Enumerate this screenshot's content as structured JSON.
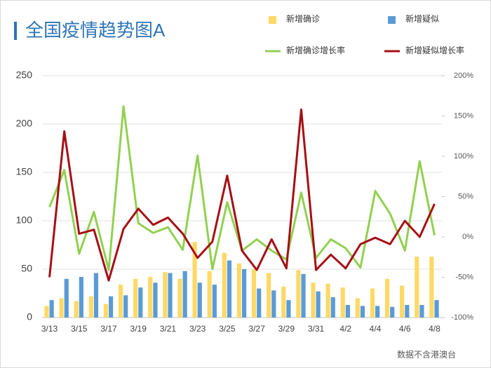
{
  "chart_data": {
    "type": "bar",
    "title": "全国疫情趋势图A",
    "note": "数据不含港澳台",
    "categories": [
      "3/13",
      null,
      "3/15",
      null,
      "3/17",
      null,
      "3/19",
      null,
      "3/21",
      null,
      "3/23",
      null,
      "3/25",
      null,
      "3/27",
      null,
      "3/29",
      null,
      "3/31",
      null,
      "4/2",
      null,
      "4/4",
      null,
      "4/6",
      null,
      "4/8"
    ],
    "series": [
      {
        "name": "新增确诊",
        "type": "bar",
        "color": "#ffd966",
        "values": [
          12,
          20,
          17,
          22,
          14,
          34,
          40,
          42,
          47,
          40,
          78,
          48,
          67,
          56,
          50,
          46,
          32,
          49,
          36,
          35,
          31,
          20,
          30,
          40,
          33,
          63,
          63
        ]
      },
      {
        "name": "新增疑似",
        "type": "bar",
        "color": "#5b9bd5",
        "values": [
          18,
          40,
          42,
          46,
          22,
          23,
          31,
          36,
          46,
          48,
          36,
          34,
          59,
          50,
          30,
          28,
          18,
          45,
          27,
          21,
          13,
          12,
          12,
          11,
          13,
          13,
          18
        ]
      },
      {
        "name": "新增确诊增长率",
        "type": "line",
        "axis": "y2",
        "color": "#92d050",
        "values": [
          37,
          83,
          -21,
          31,
          -41,
          162,
          17,
          5,
          12,
          -16,
          101,
          -40,
          43,
          -17,
          -3,
          -17,
          -28,
          55,
          -26,
          -3,
          -14,
          -38,
          57,
          29,
          -17,
          94,
          2
        ]
      },
      {
        "name": "新增疑似增长率",
        "type": "line",
        "axis": "y2",
        "color": "#a50f15",
        "values": [
          -50,
          131,
          4,
          9,
          -54,
          10,
          35,
          15,
          24,
          4,
          -26,
          -6,
          76,
          -17,
          -41,
          -3,
          -39,
          158,
          -41,
          -22,
          -39,
          -9,
          -1,
          -9,
          20,
          0,
          41
        ]
      }
    ],
    "ylim": [
      0,
      250
    ],
    "yticks": [
      0,
      50,
      100,
      150,
      200,
      250
    ],
    "y2lim": [
      -100,
      200
    ],
    "y2ticks": [
      {
        "value": -100,
        "label": "-100%"
      },
      {
        "value": -50,
        "label": "-50%"
      },
      {
        "value": 0,
        "label": "0%"
      },
      {
        "value": 50,
        "label": "50%"
      },
      {
        "value": 100,
        "label": "100%"
      },
      {
        "value": 150,
        "label": "150%"
      },
      {
        "value": 200,
        "label": "200%"
      }
    ],
    "grid": true
  }
}
